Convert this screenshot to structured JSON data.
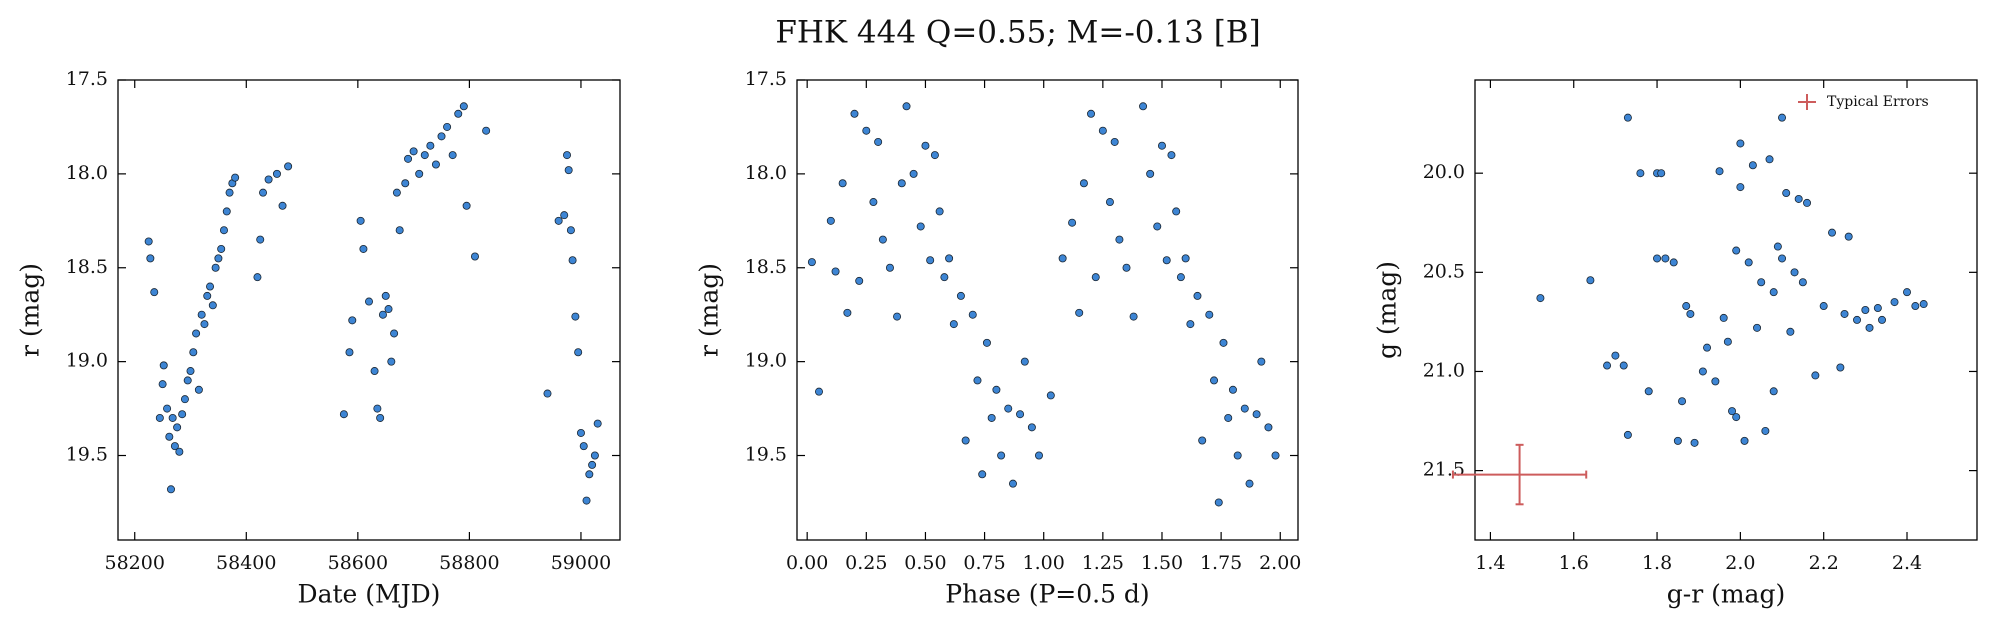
{
  "title": "FHK 444  Q=0.55; M=-0.13 [B]",
  "chart_data": [
    {
      "type": "scatter",
      "xlabel": "Date (MJD)",
      "ylabel": "r (mag)",
      "color": "#3d85d4",
      "xlim": [
        58170,
        59070
      ],
      "ylim": [
        19.95,
        17.5
      ],
      "xticks": [
        58200,
        58400,
        58600,
        58800,
        59000
      ],
      "yticks": [
        17.5,
        {
          "value": 18,
          "label": "18.0"
        },
        18.5,
        {
          "value": 19,
          "label": "19.0"
        },
        19.5
      ],
      "x": [
        58225,
        58228,
        58235,
        58245,
        58250,
        58252,
        58258,
        58262,
        58265,
        58268,
        58272,
        58276,
        58280,
        58285,
        58290,
        58295,
        58300,
        58305,
        58310,
        58315,
        58320,
        58325,
        58330,
        58335,
        58340,
        58345,
        58350,
        58355,
        58360,
        58365,
        58370,
        58375,
        58380,
        58420,
        58425,
        58430,
        58440,
        58455,
        58465,
        58475,
        58575,
        58585,
        58590,
        58605,
        58610,
        58620,
        58630,
        58635,
        58640,
        58645,
        58650,
        58655,
        58660,
        58665,
        58670,
        58675,
        58685,
        58690,
        58700,
        58710,
        58720,
        58730,
        58740,
        58750,
        58760,
        58770,
        58780,
        58790,
        58795,
        58810,
        58830,
        58940,
        58960,
        58970,
        58975,
        58978,
        58982,
        58985,
        58990,
        58995,
        59000,
        59005,
        59010,
        59015,
        59020,
        59025,
        59030
      ],
      "values": [
        18.36,
        18.45,
        18.63,
        19.3,
        19.12,
        19.02,
        19.25,
        19.4,
        19.68,
        19.3,
        19.45,
        19.35,
        19.48,
        19.28,
        19.2,
        19.1,
        19.05,
        18.95,
        18.85,
        19.15,
        18.75,
        18.8,
        18.65,
        18.6,
        18.7,
        18.5,
        18.45,
        18.4,
        18.3,
        18.2,
        18.1,
        18.05,
        18.02,
        18.55,
        18.35,
        18.1,
        18.03,
        18.0,
        18.17,
        17.96,
        19.28,
        18.95,
        18.78,
        18.25,
        18.4,
        18.68,
        19.05,
        19.25,
        19.3,
        18.75,
        18.65,
        18.72,
        19.0,
        18.85,
        18.1,
        18.3,
        18.05,
        17.92,
        17.88,
        18.0,
        17.9,
        17.85,
        17.95,
        17.8,
        17.75,
        17.9,
        17.68,
        17.64,
        18.17,
        18.44,
        17.77,
        19.17,
        18.25,
        18.22,
        17.9,
        17.98,
        18.3,
        18.46,
        18.76,
        18.95,
        19.38,
        19.45,
        19.74,
        19.6,
        19.55,
        19.5,
        19.33
      ]
    },
    {
      "type": "scatter",
      "xlabel": "Phase (P=0.5 d)",
      "ylabel": "r (mag)",
      "color": "#3d85d4",
      "xlim": [
        -0.043,
        2.075
      ],
      "ylim": [
        19.95,
        17.5
      ],
      "xticks": [
        {
          "value": 0,
          "label": "0.00"
        },
        {
          "value": 0.25,
          "label": "0.25"
        },
        {
          "value": 0.5,
          "label": "0.50"
        },
        {
          "value": 0.75,
          "label": "0.75"
        },
        {
          "value": 1,
          "label": "1.00"
        },
        {
          "value": 1.25,
          "label": "1.25"
        },
        {
          "value": 1.5,
          "label": "1.50"
        },
        {
          "value": 1.75,
          "label": "1.75"
        },
        {
          "value": 2,
          "label": "2.00"
        }
      ],
      "yticks": [
        17.5,
        {
          "value": 18,
          "label": "18.0"
        },
        18.5,
        {
          "value": 19,
          "label": "19.0"
        },
        19.5
      ],
      "x": [
        0.02,
        0.05,
        0.1,
        0.12,
        0.15,
        0.17,
        0.2,
        0.22,
        0.25,
        0.28,
        0.3,
        0.32,
        0.35,
        0.38,
        0.4,
        0.42,
        0.45,
        0.48,
        0.5,
        0.52,
        0.54,
        0.56,
        0.58,
        0.6,
        0.62,
        0.65,
        0.67,
        0.7,
        0.72,
        0.74,
        0.76,
        0.78,
        0.8,
        0.82,
        0.85,
        0.87,
        0.9,
        0.92,
        0.95,
        0.98,
        1.03,
        1.08,
        1.12,
        1.15,
        1.17,
        1.2,
        1.22,
        1.25,
        1.28,
        1.3,
        1.32,
        1.35,
        1.38,
        1.42,
        1.45,
        1.48,
        1.5,
        1.52,
        1.54,
        1.56,
        1.58,
        1.6,
        1.62,
        1.65,
        1.67,
        1.7,
        1.72,
        1.74,
        1.76,
        1.78,
        1.8,
        1.82,
        1.85,
        1.87,
        1.9,
        1.92,
        1.95,
        1.98
      ],
      "values": [
        18.47,
        19.16,
        18.25,
        18.52,
        18.05,
        18.74,
        17.68,
        18.57,
        17.77,
        18.15,
        17.83,
        18.35,
        18.5,
        18.76,
        18.05,
        17.64,
        18.0,
        18.28,
        17.85,
        18.46,
        17.9,
        18.2,
        18.55,
        18.45,
        18.8,
        18.65,
        19.42,
        18.75,
        19.1,
        19.6,
        18.9,
        19.3,
        19.15,
        19.5,
        19.25,
        19.65,
        19.28,
        19.0,
        19.35,
        19.5,
        19.18,
        18.45,
        18.26,
        18.74,
        18.05,
        17.68,
        18.55,
        17.77,
        18.15,
        17.83,
        18.35,
        18.5,
        18.76,
        17.64,
        18.0,
        18.28,
        17.85,
        18.46,
        17.9,
        18.2,
        18.55,
        18.45,
        18.8,
        18.65,
        19.42,
        18.75,
        19.1,
        19.75,
        18.9,
        19.3,
        19.15,
        19.5,
        19.25,
        19.65,
        19.28,
        19.0,
        19.35,
        19.5
      ]
    },
    {
      "type": "scatter",
      "xlabel": "g-r (mag)",
      "ylabel": "g (mag)",
      "color": "#3d85d4",
      "xlim": [
        1.363,
        2.568
      ],
      "ylim": [
        21.85,
        19.53
      ],
      "xticks": [
        1.4,
        1.6,
        1.8,
        {
          "value": 2,
          "label": "2.0"
        },
        2.2,
        2.4
      ],
      "yticks": [
        {
          "value": 20,
          "label": "20.0"
        },
        20.5,
        {
          "value": 21,
          "label": "21.0"
        },
        21.5
      ],
      "x": [
        1.52,
        1.64,
        1.68,
        1.7,
        1.72,
        1.73,
        1.73,
        1.76,
        1.78,
        1.8,
        1.81,
        1.8,
        1.82,
        1.84,
        1.85,
        1.86,
        1.87,
        1.88,
        1.89,
        1.91,
        1.92,
        1.94,
        1.95,
        1.96,
        1.97,
        1.98,
        1.99,
        1.99,
        2.0,
        2.0,
        2.01,
        2.02,
        2.03,
        2.04,
        2.05,
        2.06,
        2.07,
        2.08,
        2.08,
        2.09,
        2.1,
        2.1,
        2.11,
        2.12,
        2.13,
        2.14,
        2.15,
        2.16,
        2.18,
        2.2,
        2.22,
        2.24,
        2.25,
        2.26,
        2.28,
        2.3,
        2.31,
        2.33,
        2.34,
        2.37,
        2.4,
        2.42,
        2.44
      ],
      "values": [
        20.63,
        20.54,
        20.97,
        20.92,
        20.97,
        21.32,
        19.72,
        20.0,
        21.1,
        20.0,
        20.0,
        20.43,
        20.43,
        20.45,
        21.35,
        21.15,
        20.67,
        20.71,
        21.36,
        21.0,
        20.88,
        21.05,
        19.99,
        20.73,
        20.85,
        21.2,
        21.23,
        20.39,
        19.85,
        20.07,
        21.35,
        20.45,
        19.96,
        20.78,
        20.55,
        21.3,
        19.93,
        20.6,
        21.1,
        20.37,
        19.72,
        20.43,
        20.1,
        20.8,
        20.5,
        20.13,
        20.55,
        20.15,
        21.02,
        20.67,
        20.3,
        20.98,
        20.71,
        20.32,
        20.74,
        20.69,
        20.78,
        20.68,
        20.74,
        20.65,
        20.6,
        20.67,
        20.66
      ],
      "legend": "upper right",
      "error_bar": {
        "name": "Typical Errors",
        "x": 1.47,
        "y": 21.52,
        "xerr": 0.16,
        "yerr": 0.15,
        "color": "#cd5c5c"
      }
    }
  ]
}
